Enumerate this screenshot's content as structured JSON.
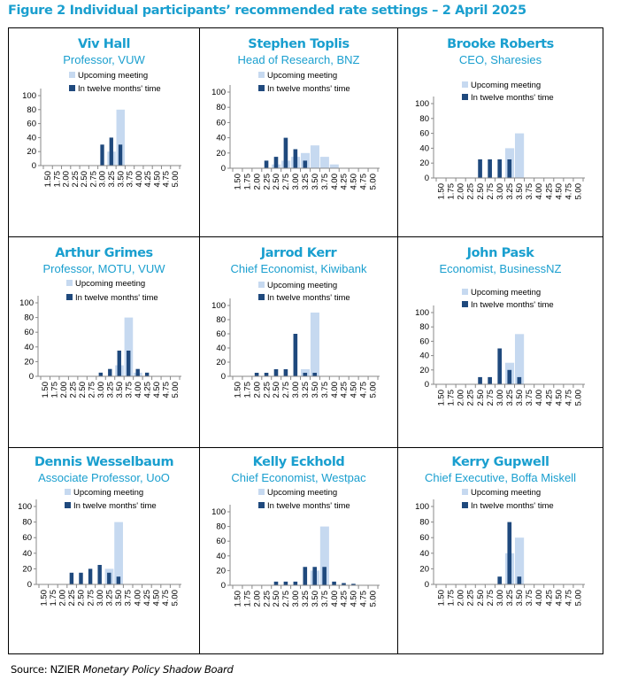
{
  "figure": {
    "title": "Figure 2 Individual participants’ recommended rate settings – 2 April 2025",
    "source_prefix": "Source: NZIER ",
    "source_italic": "Monetary Policy Shadow Board"
  },
  "colors": {
    "title": "#1a9fcf",
    "upcoming": "#c6d9f0",
    "twelve_months": "#1f497d",
    "axis": "#888888"
  },
  "chart_data": [
    {
      "type": "bar",
      "title": "Viv Hall",
      "subtitle": "Professor, VUW",
      "categories": [
        "1.50",
        "1.75",
        "2.00",
        "2.25",
        "2.50",
        "2.75",
        "3.00",
        "3.25",
        "3.50",
        "3.75",
        "4.00",
        "4.25",
        "4.50",
        "4.75",
        "5.00"
      ],
      "series": [
        {
          "name": "Upcoming meeting",
          "values": [
            0,
            0,
            0,
            0,
            0,
            0,
            0,
            20,
            80,
            0,
            0,
            0,
            0,
            0,
            0
          ]
        },
        {
          "name": "In twelve months' time",
          "values": [
            0,
            0,
            0,
            0,
            0,
            0,
            30,
            40,
            30,
            0,
            0,
            0,
            0,
            0,
            0
          ]
        }
      ],
      "yticks": [
        0,
        20,
        40,
        60,
        80,
        100
      ],
      "ylim": [
        0,
        100
      ],
      "grid": false,
      "legend": "top-right"
    },
    {
      "type": "bar",
      "title": "Stephen Toplis",
      "subtitle": "Head of Research, BNZ",
      "categories": [
        "1.50",
        "1.75",
        "2.00",
        "2.25",
        "2.50",
        "2.75",
        "3.00",
        "3.25",
        "3.50",
        "3.75",
        "4.00",
        "4.25",
        "4.50",
        "4.75",
        "5.00"
      ],
      "series": [
        {
          "name": "Upcoming meeting",
          "values": [
            0,
            0,
            0,
            0,
            5,
            10,
            15,
            20,
            30,
            15,
            5,
            0,
            0,
            0,
            0
          ]
        },
        {
          "name": "In twelve months' time",
          "values": [
            0,
            0,
            0,
            10,
            15,
            40,
            25,
            10,
            0,
            0,
            0,
            0,
            0,
            0,
            0
          ]
        }
      ],
      "yticks": [
        0,
        20,
        40,
        60,
        80,
        100
      ],
      "ylim": [
        0,
        100
      ],
      "grid": false,
      "legend": "top-right"
    },
    {
      "type": "bar",
      "title": "Brooke Roberts",
      "subtitle": "CEO, Sharesies",
      "categories": [
        "1.50",
        "1.75",
        "2.00",
        "2.25",
        "2.50",
        "2.75",
        "3.00",
        "3.25",
        "3.50",
        "3.75",
        "4.00",
        "4.25",
        "4.50",
        "4.75",
        "5.00"
      ],
      "series": [
        {
          "name": "Upcoming meeting",
          "values": [
            0,
            0,
            0,
            0,
            0,
            0,
            0,
            40,
            60,
            0,
            0,
            0,
            0,
            0,
            0
          ]
        },
        {
          "name": "In twelve months' time",
          "values": [
            0,
            0,
            0,
            0,
            25,
            25,
            25,
            25,
            0,
            0,
            0,
            0,
            0,
            0,
            0
          ]
        }
      ],
      "yticks": [
        0,
        20,
        40,
        60,
        80,
        100
      ],
      "ylim": [
        0,
        100
      ],
      "grid": false,
      "legend": "top-right"
    },
    {
      "type": "bar",
      "title": "Arthur Grimes",
      "subtitle": "Professor, MOTU, VUW",
      "categories": [
        "1.50",
        "1.75",
        "2.00",
        "2.25",
        "2.50",
        "2.75",
        "3.00",
        "3.25",
        "3.50",
        "3.75",
        "4.00",
        "4.25",
        "4.50",
        "4.75",
        "5.00"
      ],
      "series": [
        {
          "name": "Upcoming meeting",
          "values": [
            0,
            0,
            0,
            0,
            0,
            0,
            0,
            0,
            15,
            80,
            5,
            0,
            0,
            0,
            0
          ]
        },
        {
          "name": "In twelve months' time",
          "values": [
            0,
            0,
            0,
            0,
            0,
            0,
            5,
            10,
            35,
            35,
            10,
            5,
            0,
            0,
            0
          ]
        }
      ],
      "yticks": [
        0,
        20,
        40,
        60,
        80,
        100
      ],
      "ylim": [
        0,
        100
      ],
      "grid": false,
      "legend": "top-right"
    },
    {
      "type": "bar",
      "title": "Jarrod Kerr",
      "subtitle": "Chief Economist, Kiwibank",
      "categories": [
        "1.50",
        "1.75",
        "2.00",
        "2.25",
        "2.50",
        "2.75",
        "3.00",
        "3.25",
        "3.50",
        "3.75",
        "4.00",
        "4.25",
        "4.50",
        "4.75",
        "5.00"
      ],
      "series": [
        {
          "name": "Upcoming meeting",
          "values": [
            0,
            0,
            0,
            0,
            0,
            0,
            0,
            10,
            90,
            0,
            0,
            0,
            0,
            0,
            0
          ]
        },
        {
          "name": "In twelve months' time",
          "values": [
            0,
            0,
            5,
            5,
            10,
            10,
            60,
            5,
            5,
            0,
            0,
            0,
            0,
            0,
            0
          ]
        }
      ],
      "yticks": [
        0,
        20,
        40,
        60,
        80,
        100
      ],
      "ylim": [
        0,
        100
      ],
      "grid": false,
      "legend": "top-right"
    },
    {
      "type": "bar",
      "title": "John Pask",
      "subtitle": "Economist, BusinessNZ",
      "categories": [
        "1.50",
        "1.75",
        "2.00",
        "2.25",
        "2.50",
        "2.75",
        "3.00",
        "3.25",
        "3.50",
        "3.75",
        "4.00",
        "4.25",
        "4.50",
        "4.75",
        "5.00"
      ],
      "series": [
        {
          "name": "Upcoming meeting",
          "values": [
            0,
            0,
            0,
            0,
            0,
            0,
            0,
            30,
            70,
            0,
            0,
            0,
            0,
            0,
            0
          ]
        },
        {
          "name": "In twelve months' time",
          "values": [
            0,
            0,
            0,
            0,
            10,
            10,
            50,
            20,
            10,
            0,
            0,
            0,
            0,
            0,
            0
          ]
        }
      ],
      "yticks": [
        0,
        20,
        40,
        60,
        80,
        100
      ],
      "ylim": [
        0,
        100
      ],
      "grid": false,
      "legend": "top-right"
    },
    {
      "type": "bar",
      "title": "Dennis Wesselbaum",
      "subtitle": "Associate Professor, UoO",
      "categories": [
        "1.50",
        "1.75",
        "2.00",
        "2.25",
        "2.50",
        "2.75",
        "3.00",
        "3.25",
        "3.50",
        "3.75",
        "4.00",
        "4.25",
        "4.50",
        "4.75",
        "5.00"
      ],
      "series": [
        {
          "name": "Upcoming meeting",
          "values": [
            0,
            0,
            0,
            0,
            0,
            0,
            0,
            20,
            80,
            0,
            0,
            0,
            0,
            0,
            0
          ]
        },
        {
          "name": "In twelve months' time",
          "values": [
            0,
            0,
            0,
            15,
            15,
            20,
            25,
            15,
            10,
            0,
            0,
            0,
            0,
            0,
            0
          ]
        }
      ],
      "yticks": [
        0,
        20,
        40,
        60,
        80,
        100
      ],
      "ylim": [
        0,
        100
      ],
      "grid": false,
      "legend": "top-right"
    },
    {
      "type": "bar",
      "title": "Kelly Eckhold",
      "subtitle": "Chief Economist, Westpac",
      "categories": [
        "1.50",
        "1.75",
        "2.00",
        "2.25",
        "2.50",
        "2.75",
        "3.00",
        "3.25",
        "3.50",
        "3.75",
        "4.00",
        "4.25",
        "4.50",
        "4.75",
        "5.00"
      ],
      "series": [
        {
          "name": "Upcoming meeting",
          "values": [
            0,
            0,
            0,
            0,
            0,
            0,
            0,
            0,
            20,
            80,
            0,
            0,
            0,
            0,
            0
          ]
        },
        {
          "name": "In twelve months' time",
          "values": [
            0,
            0,
            0,
            0,
            5,
            5,
            5,
            25,
            25,
            25,
            5,
            3,
            2,
            0,
            0
          ]
        }
      ],
      "yticks": [
        0,
        20,
        40,
        60,
        80,
        100
      ],
      "ylim": [
        0,
        100
      ],
      "grid": false,
      "legend": "top-right"
    },
    {
      "type": "bar",
      "title": "Kerry Gupwell",
      "subtitle": "Chief Executive, Boffa Miskell",
      "categories": [
        "1.50",
        "1.75",
        "2.00",
        "2.25",
        "2.50",
        "2.75",
        "3.00",
        "3.25",
        "3.50",
        "3.75",
        "4.00",
        "4.25",
        "4.50",
        "4.75",
        "5.00"
      ],
      "series": [
        {
          "name": "Upcoming meeting",
          "values": [
            0,
            0,
            0,
            0,
            0,
            0,
            0,
            40,
            60,
            0,
            0,
            0,
            0,
            0,
            0
          ]
        },
        {
          "name": "In twelve months' time",
          "values": [
            0,
            0,
            0,
            0,
            0,
            0,
            10,
            80,
            10,
            0,
            0,
            0,
            0,
            0,
            0
          ]
        }
      ],
      "yticks": [
        0,
        20,
        40,
        60,
        80,
        100
      ],
      "ylim": [
        0,
        100
      ],
      "grid": false,
      "legend": "top-right"
    }
  ]
}
